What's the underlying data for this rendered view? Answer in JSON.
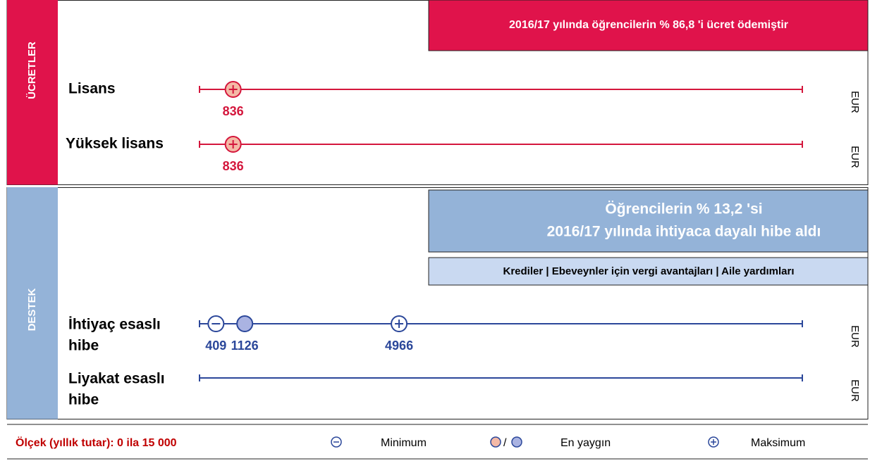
{
  "chart_data": {
    "type": "range",
    "xlim": [
      0,
      15000
    ],
    "scale_label": "Ölçek (yıllık tutar): 0 ila 15 000",
    "legend": {
      "min": "Minimum",
      "separator": "/",
      "common": "En yaygın",
      "max": "Maksimum"
    },
    "panels": [
      {
        "name": "ÜCRETLER",
        "color": "#e0134b",
        "line_color": "#d4163c",
        "marker_fill": "#f4b9a6",
        "note": [
          "2016/17 yılında öğrencilerin % 86,8 'i ücret ödemiştir"
        ],
        "rows": [
          {
            "label": [
              "Lisans"
            ],
            "unit": "EUR",
            "max": 836
          },
          {
            "label": [
              "Yüksek lisans"
            ],
            "unit": "EUR",
            "max": 836
          }
        ]
      },
      {
        "name": "DESTEK",
        "color": "#94b3d8",
        "line_color": "#2b479a",
        "marker_fill": "#aab3e2",
        "note": [
          "Öğrencilerin % 13,2 'si",
          "2016/17 yılında ihtiyaca dayalı hibe aldı"
        ],
        "subnote": "Krediler | Ebeveynler için vergi avantajları | Aile yardımları",
        "rows": [
          {
            "label": [
              "İhtiyaç esaslı",
              "hibe"
            ],
            "unit": "EUR",
            "min": 409,
            "common": 1126,
            "max": 4966
          },
          {
            "label": [
              "Liyakat esaslı",
              "hibe"
            ],
            "unit": "EUR"
          }
        ]
      }
    ]
  }
}
